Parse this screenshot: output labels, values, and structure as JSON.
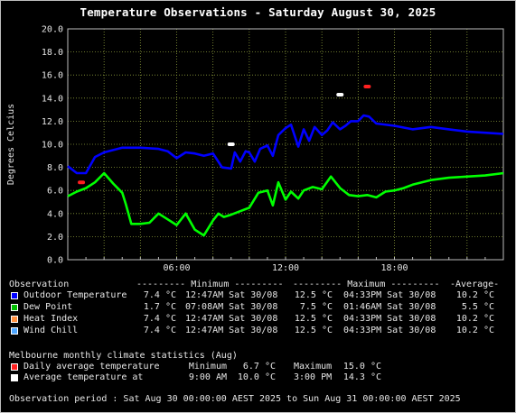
{
  "title": "Temperature Observations - Saturday August 30, 2025",
  "chart_data": {
    "type": "line",
    "ylabel": "Degrees Celcius",
    "xlabel": "",
    "ylim": [
      0,
      20
    ],
    "xlim": [
      0,
      24
    ],
    "yticks": [
      "0.0",
      "2.0",
      "4.0",
      "6.0",
      "8.0",
      "10.0",
      "12.0",
      "14.0",
      "16.0",
      "18.0",
      "20.0"
    ],
    "xticks": [
      {
        "at": 6,
        "label": "06:00"
      },
      {
        "at": 12,
        "label": "12:00"
      },
      {
        "at": 18,
        "label": "18:00"
      }
    ],
    "grid": true,
    "series": [
      {
        "name": "Outdoor Temperature",
        "color": "#0000ff",
        "x": [
          0,
          0.5,
          1,
          1.5,
          2,
          2.5,
          3,
          4,
          5,
          5.5,
          6,
          6.5,
          7,
          7.5,
          8,
          8.5,
          9,
          9.2,
          9.5,
          9.8,
          10,
          10.3,
          10.6,
          11,
          11.3,
          11.6,
          12,
          12.3,
          12.7,
          13,
          13.3,
          13.6,
          14,
          14.3,
          14.6,
          15,
          15.3,
          15.6,
          16,
          16.3,
          16.6,
          17,
          18,
          19,
          20,
          21,
          22,
          23,
          24
        ],
        "y": [
          8.1,
          7.5,
          7.5,
          8.9,
          9.3,
          9.5,
          9.7,
          9.7,
          9.6,
          9.4,
          8.8,
          9.3,
          9.2,
          9.0,
          9.2,
          8.0,
          7.9,
          9.3,
          8.5,
          9.4,
          9.3,
          8.5,
          9.6,
          9.9,
          9.0,
          10.8,
          11.4,
          11.7,
          9.8,
          11.3,
          10.3,
          11.5,
          10.8,
          11.2,
          11.9,
          11.3,
          11.6,
          12.0,
          12.0,
          12.5,
          12.4,
          11.8,
          11.6,
          11.3,
          11.5,
          11.3,
          11.1,
          11.0,
          10.9
        ]
      },
      {
        "name": "Dew Point",
        "color": "#00ff00",
        "x": [
          0,
          0.5,
          1,
          1.5,
          2,
          2.5,
          3,
          3.2,
          3.5,
          4,
          4.5,
          5,
          5.5,
          6,
          6.5,
          7,
          7.5,
          8,
          8.3,
          8.6,
          9,
          9.5,
          10,
          10.5,
          11,
          11.3,
          11.6,
          12,
          12.3,
          12.7,
          13,
          13.5,
          14,
          14.5,
          15,
          15.5,
          16,
          16.5,
          17,
          17.5,
          18,
          18.5,
          19,
          20,
          21,
          22,
          23,
          24
        ],
        "y": [
          5.5,
          5.9,
          6.2,
          6.7,
          7.5,
          6.6,
          5.8,
          4.8,
          3.1,
          3.1,
          3.2,
          4.0,
          3.5,
          3.0,
          4.0,
          2.6,
          2.1,
          3.4,
          4.0,
          3.7,
          3.9,
          4.2,
          4.5,
          5.8,
          6.0,
          4.7,
          6.7,
          5.2,
          5.9,
          5.3,
          6.0,
          6.3,
          6.1,
          7.2,
          6.2,
          5.6,
          5.5,
          5.6,
          5.4,
          5.9,
          6.0,
          6.2,
          6.5,
          6.9,
          7.1,
          7.2,
          7.3,
          7.5
        ]
      }
    ],
    "markers": [
      {
        "name": "Daily average temperature",
        "color": "#ff2020",
        "points": [
          {
            "x": 0.75,
            "y": 6.7
          },
          {
            "x": 16.5,
            "y": 15.0
          }
        ]
      },
      {
        "name": "Average temperature",
        "color": "#ffffff",
        "points": [
          {
            "x": 9.0,
            "y": 10.0
          },
          {
            "x": 15.0,
            "y": 14.3
          }
        ]
      }
    ]
  },
  "legend": {
    "header": {
      "col1": "Observation",
      "col2": "--------- Minimum ---------",
      "col3": "--------- Maximum ---------",
      "col4": "-Average-"
    },
    "rows": [
      {
        "color": "#0000ff",
        "name": "Outdoor Temperature",
        "min": "7.4 °C",
        "min_at": "12:47AM Sat 30/08",
        "max": "12.5 °C",
        "max_at": "04:33PM Sat 30/08",
        "avg": "10.2 °C"
      },
      {
        "color": "#00c000",
        "name": "Dew Point",
        "min": "1.7 °C",
        "min_at": "07:08AM Sat 30/08",
        "max": "7.5 °C",
        "max_at": "01:46AM Sat 30/08",
        "avg": "5.5 °C"
      },
      {
        "color": "#ff9040",
        "name": "Heat Index",
        "min": "7.4 °C",
        "min_at": "12:47AM Sat 30/08",
        "max": "12.5 °C",
        "max_at": "04:33PM Sat 30/08",
        "avg": "10.2 °C"
      },
      {
        "color": "#4da6ff",
        "name": "Wind Chill",
        "min": "7.4 °C",
        "min_at": "12:47AM Sat 30/08",
        "max": "12.5 °C",
        "max_at": "04:33PM Sat 30/08",
        "avg": "10.2 °C"
      }
    ]
  },
  "climate": {
    "heading": "Melbourne monthly climate statistics (Aug)",
    "rows": [
      {
        "color": "#ff2020",
        "name": "Daily average temperature",
        "label1": "Minimum",
        "val1": "6.7 °C",
        "label2": "Maximum",
        "val2": "15.0 °C"
      },
      {
        "color": "#ffffff",
        "name": "Average temperature at",
        "label1": "9:00 AM",
        "val1": "10.0 °C",
        "label2": "3:00 PM",
        "val2": "14.3 °C"
      }
    ]
  },
  "footer": "Observation period : Sat Aug 30 00:00:00 AEST 2025 to Sun Aug 31 00:00:00 AEST 2025"
}
